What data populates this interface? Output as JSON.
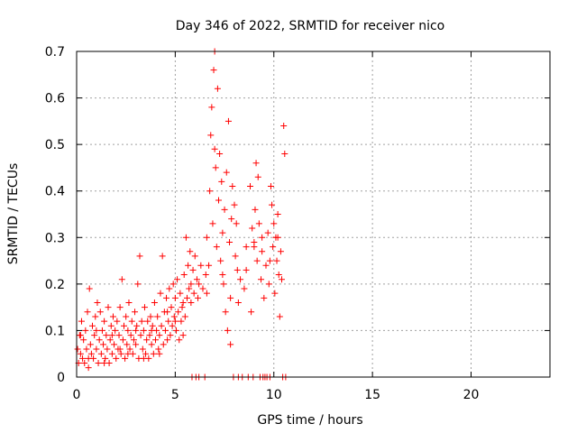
{
  "chart_data": {
    "type": "scatter",
    "title": "Day 346 of 2022, SRMTID for receiver nico",
    "xlabel": "GPS time / hours",
    "ylabel": "SRMTID / TECUs",
    "xlim": [
      0,
      24
    ],
    "ylim": [
      0,
      0.7
    ],
    "xticks": [
      "0",
      "5",
      "10",
      "15",
      "20"
    ],
    "xtick_values": [
      0,
      5,
      10,
      15,
      20
    ],
    "yticks": [
      "0",
      "0.1",
      "0.2",
      "0.3",
      "0.4",
      "0.5",
      "0.6",
      "0.7"
    ],
    "ytick_values": [
      0,
      0.1,
      0.2,
      0.3,
      0.4,
      0.5,
      0.6,
      0.7
    ],
    "grid": true,
    "marker": "+",
    "color": "#ff0000",
    "series": [
      {
        "name": "SRMTID",
        "points": [
          [
            0.05,
            0.06
          ],
          [
            0.1,
            0.03
          ],
          [
            0.15,
            0.09
          ],
          [
            0.2,
            0.05
          ],
          [
            0.25,
            0.12
          ],
          [
            0.3,
            0.04
          ],
          [
            0.35,
            0.08
          ],
          [
            0.4,
            0.03
          ],
          [
            0.45,
            0.1
          ],
          [
            0.5,
            0.06
          ],
          [
            0.55,
            0.14
          ],
          [
            0.6,
            0.02
          ],
          [
            0.65,
            0.19
          ],
          [
            0.7,
            0.07
          ],
          [
            0.75,
            0.05
          ],
          [
            0.8,
            0.11
          ],
          [
            0.85,
            0.04
          ],
          [
            0.9,
            0.09
          ],
          [
            0.95,
            0.13
          ],
          [
            1.0,
            0.06
          ],
          [
            1.05,
            0.16
          ],
          [
            1.1,
            0.03
          ],
          [
            1.15,
            0.08
          ],
          [
            1.2,
            0.14
          ],
          [
            1.25,
            0.05
          ],
          [
            1.3,
            0.1
          ],
          [
            1.35,
            0.07
          ],
          [
            1.4,
            0.12
          ],
          [
            1.45,
            0.04
          ],
          [
            1.5,
            0.09
          ],
          [
            1.55,
            0.06
          ],
          [
            1.6,
            0.15
          ],
          [
            1.65,
            0.03
          ],
          [
            1.7,
            0.08
          ],
          [
            1.75,
            0.11
          ],
          [
            1.8,
            0.05
          ],
          [
            1.85,
            0.13
          ],
          [
            1.9,
            0.07
          ],
          [
            1.95,
            0.1
          ],
          [
            2.0,
            0.04
          ],
          [
            2.05,
            0.12
          ],
          [
            2.1,
            0.06
          ],
          [
            2.15,
            0.09
          ],
          [
            2.2,
            0.15
          ],
          [
            2.25,
            0.05
          ],
          [
            2.3,
            0.21
          ],
          [
            2.35,
            0.08
          ],
          [
            2.4,
            0.11
          ],
          [
            2.45,
            0.04
          ],
          [
            2.5,
            0.13
          ],
          [
            2.55,
            0.07
          ],
          [
            2.6,
            0.1
          ],
          [
            2.65,
            0.16
          ],
          [
            2.7,
            0.06
          ],
          [
            2.75,
            0.09
          ],
          [
            2.8,
            0.12
          ],
          [
            2.85,
            0.05
          ],
          [
            2.9,
            0.08
          ],
          [
            2.95,
            0.14
          ],
          [
            3.0,
            0.07
          ],
          [
            3.05,
            0.11
          ],
          [
            3.1,
            0.2
          ],
          [
            3.15,
            0.04
          ],
          [
            3.2,
            0.26
          ],
          [
            3.25,
            0.09
          ],
          [
            3.3,
            0.12
          ],
          [
            3.35,
            0.06
          ],
          [
            3.4,
            0.1
          ],
          [
            3.45,
            0.15
          ],
          [
            3.5,
            0.05
          ],
          [
            3.55,
            0.08
          ],
          [
            3.6,
            0.12
          ],
          [
            3.65,
            0.04
          ],
          [
            3.7,
            0.09
          ],
          [
            3.75,
            0.13
          ],
          [
            3.8,
            0.07
          ],
          [
            3.85,
            0.11
          ],
          [
            3.9,
            0.05
          ],
          [
            3.95,
            0.16
          ],
          [
            4.0,
            0.08
          ],
          [
            4.05,
            0.1
          ],
          [
            4.1,
            0.13
          ],
          [
            4.15,
            0.06
          ],
          [
            4.2,
            0.09
          ],
          [
            4.25,
            0.18
          ],
          [
            4.3,
            0.11
          ],
          [
            4.35,
            0.26
          ],
          [
            4.4,
            0.07
          ],
          [
            4.45,
            0.14
          ],
          [
            4.5,
            0.1
          ],
          [
            4.55,
            0.17
          ],
          [
            4.6,
            0.08
          ],
          [
            4.65,
            0.12
          ],
          [
            4.7,
            0.19
          ],
          [
            4.75,
            0.09
          ],
          [
            4.8,
            0.15
          ],
          [
            4.85,
            0.11
          ],
          [
            4.9,
            0.2
          ],
          [
            4.95,
            0.13
          ],
          [
            5.0,
            0.17
          ],
          [
            5.05,
            0.1
          ],
          [
            5.1,
            0.21
          ],
          [
            5.15,
            0.14
          ],
          [
            5.2,
            0.08
          ],
          [
            5.25,
            0.18
          ],
          [
            5.3,
            0.12
          ],
          [
            5.35,
            0.15
          ],
          [
            5.4,
            0.09
          ],
          [
            5.45,
            0.22
          ],
          [
            5.5,
            0.13
          ],
          [
            5.55,
            0.3
          ],
          [
            5.6,
            0.17
          ],
          [
            5.65,
            0.24
          ],
          [
            5.7,
            0.19
          ],
          [
            5.75,
            0.27
          ],
          [
            5.8,
            0.16
          ],
          [
            5.85,
            0.0
          ],
          [
            5.9,
            0.23
          ],
          [
            5.95,
            0.18
          ],
          [
            6.0,
            0.26
          ],
          [
            6.05,
            0.0
          ],
          [
            6.1,
            0.21
          ],
          [
            6.15,
            0.17
          ],
          [
            6.2,
            0.0
          ],
          [
            6.3,
            0.24
          ],
          [
            6.4,
            0.19
          ],
          [
            6.5,
            0.0
          ],
          [
            6.55,
            0.22
          ],
          [
            6.6,
            0.3
          ],
          [
            6.7,
            0.24
          ],
          [
            6.75,
            0.4
          ],
          [
            6.8,
            0.52
          ],
          [
            6.85,
            0.58
          ],
          [
            6.9,
            0.33
          ],
          [
            6.95,
            0.66
          ],
          [
            7.0,
            0.7
          ],
          [
            7.05,
            0.45
          ],
          [
            7.1,
            0.28
          ],
          [
            7.15,
            0.62
          ],
          [
            7.2,
            0.38
          ],
          [
            7.25,
            0.48
          ],
          [
            7.3,
            0.25
          ],
          [
            7.35,
            0.42
          ],
          [
            7.4,
            0.31
          ],
          [
            7.45,
            0.2
          ],
          [
            7.5,
            0.36
          ],
          [
            7.55,
            0.14
          ],
          [
            7.6,
            0.44
          ],
          [
            7.65,
            0.1
          ],
          [
            7.7,
            0.55
          ],
          [
            7.75,
            0.29
          ],
          [
            7.8,
            0.07
          ],
          [
            7.85,
            0.34
          ],
          [
            7.9,
            0.41
          ],
          [
            7.95,
            0.0
          ],
          [
            8.0,
            0.37
          ],
          [
            8.05,
            0.26
          ],
          [
            8.1,
            0.33
          ],
          [
            8.15,
            0.23
          ],
          [
            8.2,
            0.0
          ],
          [
            8.3,
            0.21
          ],
          [
            8.4,
            0.0
          ],
          [
            8.5,
            0.19
          ],
          [
            8.6,
            0.23
          ],
          [
            8.7,
            0.0
          ],
          [
            8.8,
            0.41
          ],
          [
            8.85,
            0.14
          ],
          [
            8.9,
            0.32
          ],
          [
            8.95,
            0.0
          ],
          [
            9.0,
            0.29
          ],
          [
            9.05,
            0.36
          ],
          [
            9.1,
            0.46
          ],
          [
            9.15,
            0.25
          ],
          [
            9.2,
            0.43
          ],
          [
            9.25,
            0.33
          ],
          [
            9.3,
            0.0
          ],
          [
            9.35,
            0.21
          ],
          [
            9.4,
            0.27
          ],
          [
            9.45,
            0.0
          ],
          [
            9.5,
            0.17
          ],
          [
            9.55,
            0.0
          ],
          [
            9.6,
            0.24
          ],
          [
            9.65,
            0.0
          ],
          [
            9.7,
            0.31
          ],
          [
            9.75,
            0.2
          ],
          [
            9.8,
            0.0
          ],
          [
            9.85,
            0.41
          ],
          [
            9.9,
            0.37
          ],
          [
            9.95,
            0.28
          ],
          [
            10.0,
            0.33
          ],
          [
            10.05,
            0.18
          ],
          [
            10.1,
            0.3
          ],
          [
            10.15,
            0.25
          ],
          [
            10.2,
            0.35
          ],
          [
            10.25,
            0.22
          ],
          [
            10.3,
            0.13
          ],
          [
            10.35,
            0.27
          ],
          [
            10.4,
            0.21
          ],
          [
            10.45,
            0.0
          ],
          [
            10.5,
            0.54
          ],
          [
            10.55,
            0.48
          ],
          [
            10.6,
            0.0
          ],
          [
            0.2,
            0.09
          ],
          [
            0.6,
            0.04
          ],
          [
            1.0,
            0.1
          ],
          [
            1.4,
            0.03
          ],
          [
            1.8,
            0.09
          ],
          [
            2.2,
            0.06
          ],
          [
            2.6,
            0.05
          ],
          [
            3.0,
            0.1
          ],
          [
            3.4,
            0.04
          ],
          [
            3.8,
            0.1
          ],
          [
            4.2,
            0.05
          ],
          [
            4.6,
            0.14
          ],
          [
            5.0,
            0.12
          ],
          [
            5.4,
            0.16
          ],
          [
            5.8,
            0.2
          ],
          [
            6.2,
            0.2
          ],
          [
            6.6,
            0.18
          ],
          [
            7.0,
            0.49
          ],
          [
            7.4,
            0.22
          ],
          [
            7.8,
            0.17
          ],
          [
            8.2,
            0.16
          ],
          [
            8.6,
            0.28
          ],
          [
            9.0,
            0.28
          ],
          [
            9.4,
            0.3
          ],
          [
            9.8,
            0.25
          ],
          [
            10.2,
            0.3
          ]
        ]
      }
    ]
  }
}
